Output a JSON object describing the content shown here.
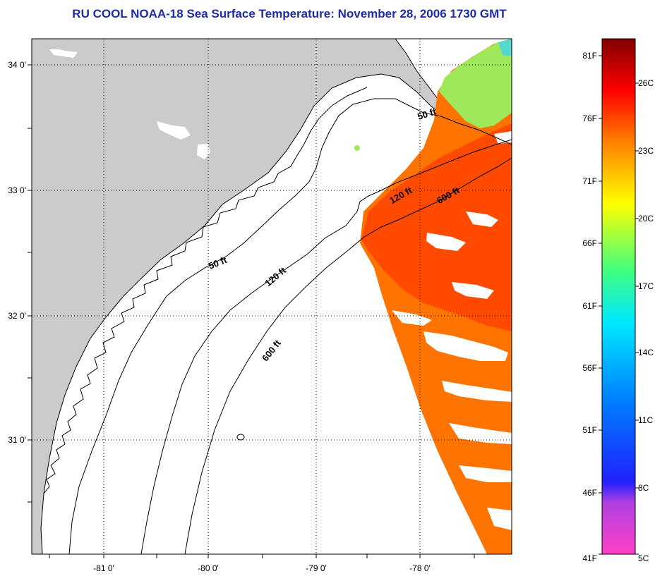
{
  "title": "RU COOL  NOAA-18  Sea Surface Temperature:  November 28, 2006 1730 GMT",
  "map": {
    "lon_ticks": [
      "-81 0'",
      "-80 0'",
      "-79 0'",
      "-78 0'"
    ],
    "lat_ticks": [
      "34 0'",
      "33 0'",
      "32 0'",
      "31 0'"
    ],
    "contours": [
      {
        "label": "50 ft"
      },
      {
        "label": "120 ft"
      },
      {
        "label": "600 ft"
      }
    ],
    "contour_labels": [
      "50 ft",
      "120 ft",
      "600 ft",
      "50 ft",
      "120 ft",
      "600 ft"
    ]
  },
  "colorbar": {
    "fahrenheit": [
      "81F",
      "76F",
      "71F",
      "66F",
      "61F",
      "56F",
      "51F",
      "46F",
      "41F"
    ],
    "celsius": [
      "26C",
      "23C",
      "20C",
      "17C",
      "14C",
      "11C",
      "8C",
      "5C"
    ]
  },
  "colors": {
    "land": "#cbcbcb",
    "ocean": "#ffffff",
    "sst_warm": "#ff4a00",
    "sst_orange": "#ff7400",
    "sst_green": "#8ee85a",
    "title": "#1c2cae"
  }
}
